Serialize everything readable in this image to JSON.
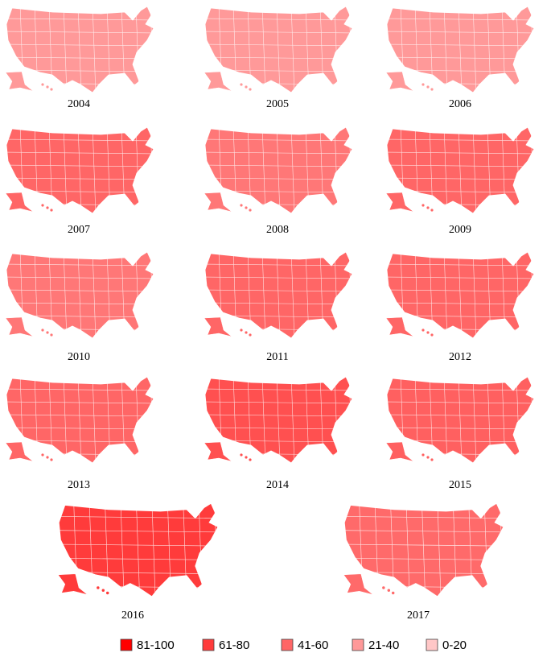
{
  "maps": [
    {
      "year": "2004",
      "color": "#ff9999"
    },
    {
      "year": "2005",
      "color": "#ff9999"
    },
    {
      "year": "2006",
      "color": "#ff9999"
    },
    {
      "year": "2007",
      "color": "#ff6666"
    },
    {
      "year": "2008",
      "color": "#ff7777"
    },
    {
      "year": "2009",
      "color": "#ff6666"
    },
    {
      "year": "2010",
      "color": "#ff7777"
    },
    {
      "year": "2011",
      "color": "#ff6666"
    },
    {
      "year": "2012",
      "color": "#ff6666"
    },
    {
      "year": "2013",
      "color": "#ff6666"
    },
    {
      "year": "2014",
      "color": "#ff5050"
    },
    {
      "year": "2015",
      "color": "#ff6060"
    },
    {
      "year": "2016",
      "color": "#ff3b3b"
    },
    {
      "year": "2017",
      "color": "#ff6a6a"
    }
  ],
  "legend": [
    {
      "label": "81-100",
      "color": "#ff0000"
    },
    {
      "label": "61-80",
      "color": "#ff3b3b"
    },
    {
      "label": "41-60",
      "color": "#ff6666"
    },
    {
      "label": "21-40",
      "color": "#ff9999"
    },
    {
      "label": "0-20",
      "color": "#ffc7c7"
    }
  ]
}
